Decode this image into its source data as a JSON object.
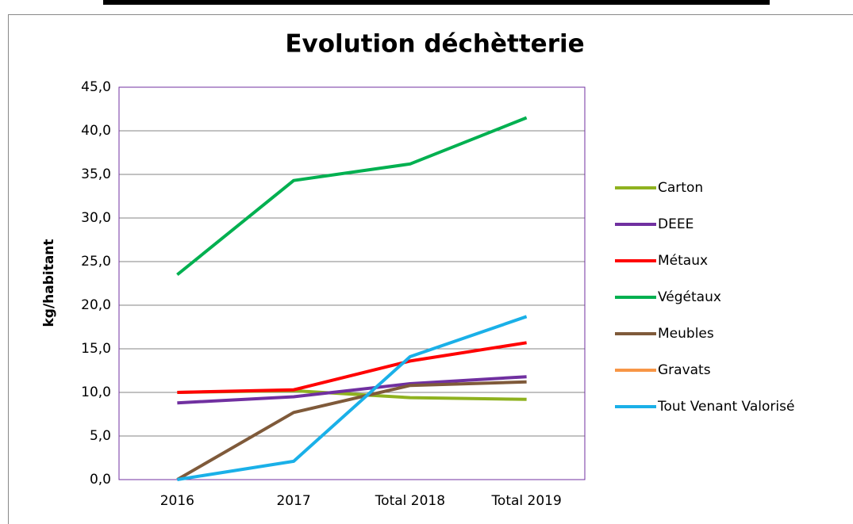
{
  "chart_data": {
    "type": "line",
    "title": "Evolution déchètterie",
    "y_label": "kg/habitant",
    "categories": [
      "2016",
      "2017",
      "Total 2018",
      "Total 2019"
    ],
    "series": [
      {
        "name": "Carton",
        "color": "#8fb21f",
        "values": [
          10.0,
          10.2,
          9.4,
          9.2
        ]
      },
      {
        "name": "DEEE",
        "color": "#7030a0",
        "values": [
          8.8,
          9.5,
          11.0,
          11.8
        ]
      },
      {
        "name": "Métaux",
        "color": "#ff0000",
        "values": [
          10.0,
          10.3,
          13.6,
          15.7
        ]
      },
      {
        "name": "Végétaux",
        "color": "#00b050",
        "values": [
          23.5,
          34.3,
          36.2,
          41.5
        ]
      },
      {
        "name": "Meubles",
        "color": "#7f5a3a",
        "values": [
          0.0,
          7.7,
          10.8,
          11.2
        ]
      },
      {
        "name": "Gravats",
        "color": "#f79646",
        "values": [
          null,
          null,
          null,
          null
        ]
      },
      {
        "name": "Tout Venant Valorisé",
        "color": "#1ab0e8",
        "values": [
          0.0,
          2.1,
          14.1,
          18.7
        ]
      }
    ],
    "ylim": [
      0,
      45
    ],
    "yticks": [
      {
        "value": 0,
        "label": "0,0"
      },
      {
        "value": 5,
        "label": "5,0"
      },
      {
        "value": 10,
        "label": "10,0"
      },
      {
        "value": 15,
        "label": "15,0"
      },
      {
        "value": 20,
        "label": "20,0"
      },
      {
        "value": 25,
        "label": "25,0"
      },
      {
        "value": 30,
        "label": "30,0"
      },
      {
        "value": 35,
        "label": "35,0"
      },
      {
        "value": 40,
        "label": "40,0"
      },
      {
        "value": 45,
        "label": "45,0"
      }
    ],
    "grid": true,
    "legend": "right"
  }
}
